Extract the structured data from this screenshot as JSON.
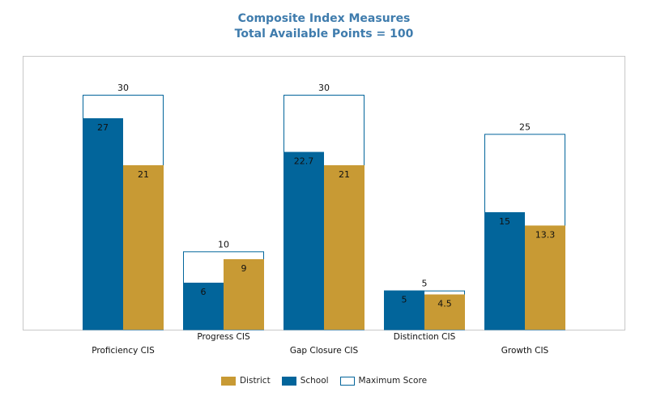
{
  "chart_data": {
    "type": "bar",
    "title": "Composite Index Measures",
    "subtitle": "Total Available Points = 100",
    "categories": [
      "Proficiency CIS",
      "Progress CIS",
      "Gap Closure CIS",
      "Distinction CIS",
      "Growth CIS"
    ],
    "max_scores": [
      30,
      10,
      30,
      5,
      25
    ],
    "max_score_labels": [
      "30",
      "10",
      "30",
      "5",
      "25"
    ],
    "series": [
      {
        "name": "School",
        "values": [
          27,
          6,
          22.7,
          5,
          15
        ],
        "labels": [
          "27",
          "6",
          "22.7",
          "5",
          "15"
        ]
      },
      {
        "name": "District",
        "values": [
          21,
          9,
          21,
          4.5,
          13.3
        ],
        "labels": [
          "21",
          "9",
          "21",
          "4.5",
          "13.3"
        ]
      }
    ],
    "ylim": [
      0,
      30
    ],
    "grid": false,
    "legend_position": "bottom-center",
    "legend": [
      "District",
      "School",
      "Maximum Score"
    ]
  },
  "colors": {
    "school": "#02659b",
    "district": "#c89a34",
    "maximum": "#ffffff",
    "maximum_border": "#02659b",
    "title": "#3f7cad",
    "plot_border": "#c8c8c8"
  }
}
